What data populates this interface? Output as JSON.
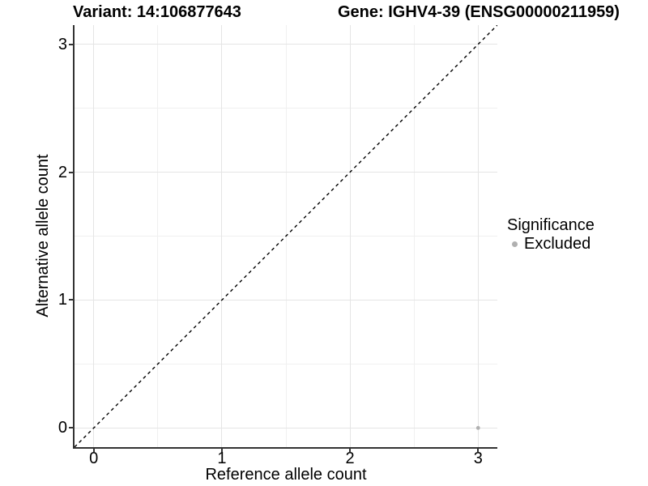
{
  "chart_data": {
    "type": "scatter",
    "title_left": "Variant: 14:106877643",
    "title_right": "Gene: IGHV4-39 (ENSG00000211959)",
    "xlabel": "Reference allele count",
    "ylabel": "Alternative allele count",
    "xticks": [
      0,
      1,
      2,
      3
    ],
    "yticks": [
      0,
      1,
      2,
      3
    ],
    "xlim": [
      -0.15,
      3.15
    ],
    "ylim": [
      -0.15,
      3.15
    ],
    "grid": true,
    "minor_grid": true,
    "points": [
      {
        "x": 3,
        "y": 0,
        "significance": "Excluded"
      }
    ],
    "reference_line": {
      "kind": "identity",
      "x0": -0.15,
      "y0": -0.15,
      "x1": 3.15,
      "y1": 3.15,
      "style": "dashed",
      "color": "#000000"
    },
    "legend": {
      "position": "right",
      "title": "Significance",
      "items": [
        {
          "label": "Excluded",
          "color": "#b0b0b0"
        }
      ]
    },
    "colors": {
      "point": "#b0b0b0",
      "grid_major": "#e5e5e5",
      "grid_minor": "#f0f0f0",
      "axis_line": "#333333",
      "text": "#000000",
      "background": "#ffffff"
    }
  }
}
